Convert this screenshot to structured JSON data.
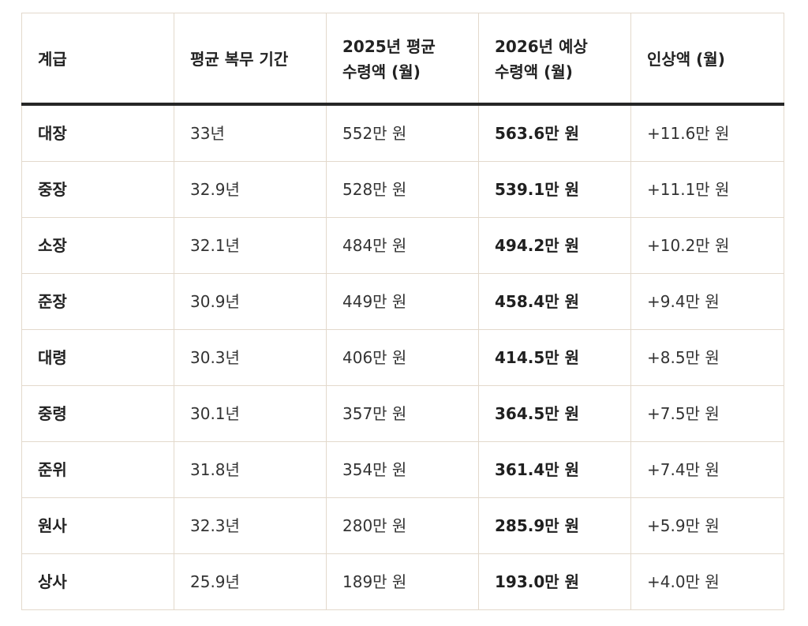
{
  "table": {
    "headers": [
      "계급",
      "평균 복무 기간",
      "2025년 평균\n수령액 (월)",
      "2026년 예상\n수령액 (월)",
      "인상액 (월)"
    ],
    "rows": [
      [
        "대장",
        "33년",
        "552만 원",
        "563.6만 원",
        "+11.6만 원"
      ],
      [
        "중장",
        "32.9년",
        "528만 원",
        "539.1만 원",
        "+11.1만 원"
      ],
      [
        "소장",
        "32.1년",
        "484만 원",
        "494.2만 원",
        "+10.2만 원"
      ],
      [
        "준장",
        "30.9년",
        "449만 원",
        "458.4만 원",
        "+9.4만 원"
      ],
      [
        "대령",
        "30.3년",
        "406만 원",
        "414.5만 원",
        "+8.5만 원"
      ],
      [
        "중령",
        "30.1년",
        "357만 원",
        "364.5만 원",
        "+7.5만 원"
      ],
      [
        "준위",
        "31.8년",
        "354만 원",
        "361.4만 원",
        "+7.4만 원"
      ],
      [
        "원사",
        "32.3년",
        "280만 원",
        "285.9만 원",
        "+5.9만 원"
      ],
      [
        "상사",
        "25.9년",
        "189만 원",
        "193.0만 원",
        "+4.0만 원"
      ]
    ]
  }
}
